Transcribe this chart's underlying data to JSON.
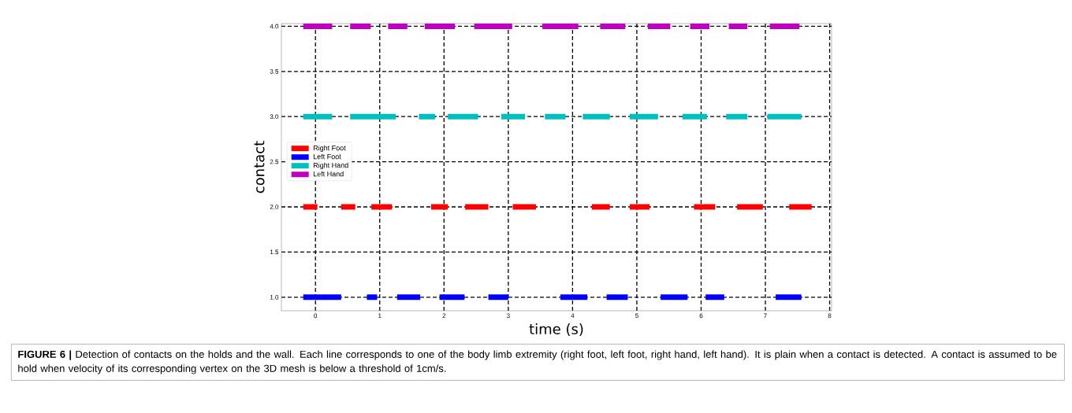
{
  "chart_data": {
    "type": "line",
    "xlabel": "time (s)",
    "ylabel": "contact",
    "xlim": [
      -0.53,
      8.03
    ],
    "ylim": [
      0.85,
      4.03
    ],
    "xticks": [
      0,
      1,
      2,
      3,
      4,
      5,
      6,
      7,
      8
    ],
    "yticks": [
      {
        "value": 1.0,
        "label": "1.0"
      },
      {
        "value": 1.5,
        "label": "1.5"
      },
      {
        "value": 2.0,
        "label": "2.0"
      },
      {
        "value": 2.5,
        "label": "2.5"
      },
      {
        "value": 3.0,
        "label": "3.0"
      },
      {
        "value": 3.5,
        "label": "3.5"
      },
      {
        "value": 4.0,
        "label": "4.0"
      }
    ],
    "grid": true,
    "legend": "left",
    "line_style": "solid",
    "series": [
      {
        "name": "Right Foot",
        "color": "#ff0000",
        "x": [
          -0.19,
          0.03,
          null,
          0.4,
          0.62,
          null,
          0.87,
          1.19,
          null,
          1.8,
          2.06,
          null,
          2.33,
          2.69,
          null,
          3.07,
          3.43,
          null,
          4.3,
          4.58,
          null,
          4.89,
          5.2,
          null,
          5.89,
          6.22,
          null,
          6.56,
          6.96,
          null,
          7.37,
          7.72
        ],
        "values": [
          2,
          2,
          null,
          2,
          2,
          null,
          2,
          2,
          null,
          2,
          2,
          null,
          2,
          2,
          null,
          2,
          2,
          null,
          2,
          2,
          null,
          2,
          2,
          null,
          2,
          2,
          null,
          2,
          2,
          null,
          2,
          2
        ]
      },
      {
        "name": "Left Foot",
        "color": "#0000ff",
        "x": [
          -0.19,
          0.4,
          null,
          0.8,
          0.96,
          null,
          1.27,
          1.63,
          null,
          1.93,
          2.32,
          null,
          2.69,
          3.0,
          null,
          3.81,
          4.23,
          null,
          4.53,
          4.86,
          null,
          5.37,
          5.79,
          null,
          6.07,
          6.36,
          null,
          7.16,
          7.56
        ],
        "values": [
          1,
          1,
          null,
          1,
          1,
          null,
          1,
          1,
          null,
          1,
          1,
          null,
          1,
          1,
          null,
          1,
          1,
          null,
          1,
          1,
          null,
          1,
          1,
          null,
          1,
          1,
          null,
          1,
          1
        ]
      },
      {
        "name": "Right Hand",
        "color": "#00bfbf",
        "x": [
          -0.19,
          0.26,
          null,
          0.54,
          1.25,
          null,
          1.61,
          1.86,
          null,
          2.06,
          2.53,
          null,
          2.89,
          3.26,
          null,
          3.57,
          3.89,
          null,
          4.16,
          4.58,
          null,
          4.89,
          5.33,
          null,
          5.71,
          6.09,
          null,
          6.39,
          6.72,
          null,
          7.03,
          7.56
        ],
        "values": [
          3,
          3,
          null,
          3,
          3,
          null,
          3,
          3,
          null,
          3,
          3,
          null,
          3,
          3,
          null,
          3,
          3,
          null,
          3,
          3,
          null,
          3,
          3,
          null,
          3,
          3,
          null,
          3,
          3,
          null,
          3,
          3
        ]
      },
      {
        "name": "Left Hand",
        "color": "#bf00bf",
        "x": [
          -0.19,
          0.26,
          null,
          0.54,
          0.86,
          null,
          1.13,
          1.43,
          null,
          1.7,
          2.17,
          null,
          2.47,
          3.06,
          null,
          3.53,
          4.09,
          null,
          4.43,
          4.82,
          null,
          5.17,
          5.52,
          null,
          5.83,
          6.13,
          null,
          6.43,
          6.72,
          null,
          7.07,
          7.53
        ],
        "values": [
          4,
          4,
          null,
          4,
          4,
          null,
          4,
          4,
          null,
          4,
          4,
          null,
          4,
          4,
          null,
          4,
          4,
          null,
          4,
          4,
          null,
          4,
          4,
          null,
          4,
          4,
          null,
          4,
          4,
          null,
          4,
          4
        ]
      }
    ],
    "annotations": [
      "**FIGURE 6 |** Detection of contacts on the holds and the wall. Each line corresponds to one of the body limb extremity (right foot, left foot, right hand, left hand). It is plain when a contact is detected. A contact is assumed to be hold when velocity of its corresponding vertex on the 3D mesh is below a threshold of 1cm/s."
    ]
  }
}
